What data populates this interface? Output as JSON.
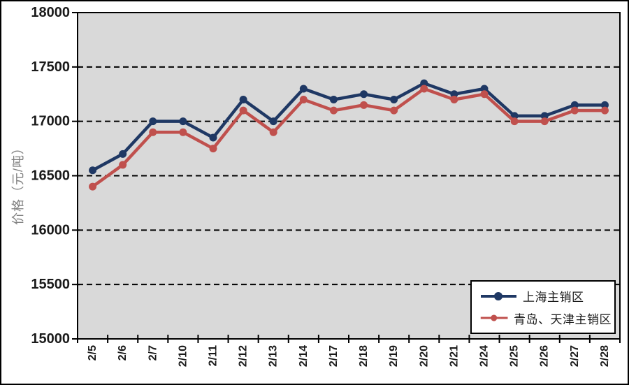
{
  "figure": {
    "background": "#ffffff",
    "plot_background": "#d9d9d9",
    "frame_color": "#000000",
    "gridline_color": "#000000",
    "tick_label_color": "#1a1a1a"
  },
  "y_axis": {
    "title": "价格（元/吨）",
    "title_color": "#808080",
    "min": 15000,
    "max": 18000,
    "step": 500,
    "tick_labels": [
      "15000",
      "15500",
      "16000",
      "16500",
      "17000",
      "17500",
      "18000"
    ]
  },
  "x_axis": {
    "tick_labels": [
      "2/5",
      "2/6",
      "2/7",
      "2/10",
      "2/11",
      "2/12",
      "2/13",
      "2/14",
      "2/17",
      "2/18",
      "2/19",
      "2/20",
      "2/21",
      "2/24",
      "2/25",
      "2/26",
      "2/27",
      "2/28"
    ]
  },
  "legend": {
    "position": "inside-bottom-right",
    "items": [
      {
        "label": "上海主销区",
        "color": "#1f3864"
      },
      {
        "label": "青岛、天津主销区",
        "color": "#c0504d"
      }
    ]
  },
  "chart_data": {
    "type": "line",
    "title": "",
    "xlabel": "",
    "ylabel": "价格（元/吨）",
    "ylim": [
      15000,
      18000
    ],
    "ytick_step": 500,
    "grid": "horizontal-dashed",
    "legend_position": "inside-bottom-right",
    "categories": [
      "2/5",
      "2/6",
      "2/7",
      "2/10",
      "2/11",
      "2/12",
      "2/13",
      "2/14",
      "2/17",
      "2/18",
      "2/19",
      "2/20",
      "2/21",
      "2/24",
      "2/25",
      "2/26",
      "2/27",
      "2/28"
    ],
    "series": [
      {
        "name": "上海主销区",
        "color": "#1f3864",
        "marker": "circle",
        "values": [
          16550,
          16700,
          17000,
          17000,
          16850,
          17200,
          17000,
          17300,
          17200,
          17250,
          17200,
          17350,
          17250,
          17300,
          17050,
          17050,
          17150,
          17150
        ]
      },
      {
        "name": "青岛、天津主销区",
        "color": "#c0504d",
        "marker": "circle",
        "values": [
          16400,
          16600,
          16900,
          16900,
          16750,
          17100,
          16900,
          17200,
          17100,
          17150,
          17100,
          17300,
          17200,
          17250,
          17000,
          17000,
          17100,
          17100
        ]
      }
    ]
  }
}
